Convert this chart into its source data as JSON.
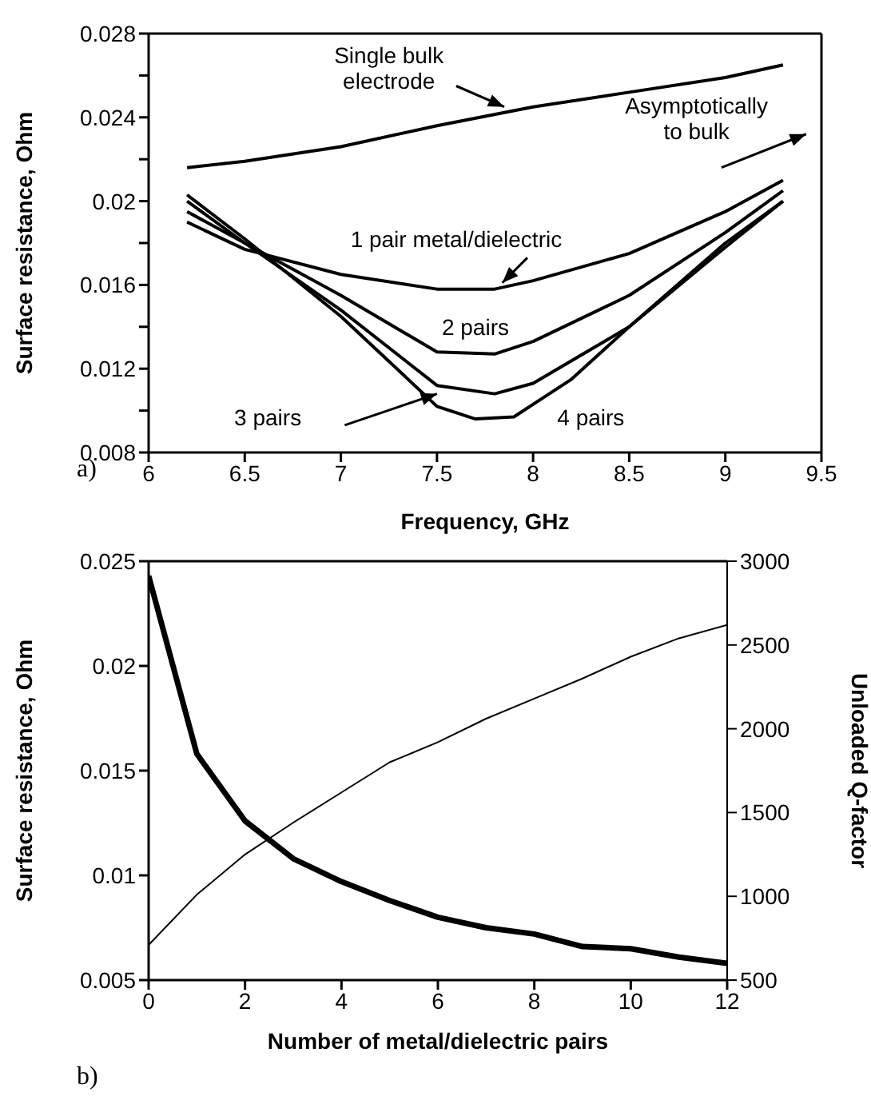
{
  "chart_data": [
    {
      "type": "line",
      "xlabel": "Frequency, GHz",
      "ylabel": "Surface resistance, Ohm",
      "xlim": [
        6,
        9.5
      ],
      "xticks": [
        6,
        6.5,
        7,
        7.5,
        8,
        8.5,
        9,
        9.5
      ],
      "ylim": [
        0.008,
        0.028
      ],
      "yticks": [
        0.008,
        {
          "value": 0.01,
          "label": null
        },
        0.012,
        {
          "value": 0.014,
          "label": null
        },
        0.016,
        {
          "value": 0.018,
          "label": null
        },
        0.02,
        {
          "value": 0.022,
          "label": null
        },
        0.024,
        {
          "value": 0.026,
          "label": null
        },
        0.028
      ],
      "marker": "none",
      "annotations": [
        "Asymptotically to bulk",
        "a)"
      ],
      "series": [
        {
          "name": "Single bulk electrode",
          "color": "#000000",
          "x": [
            6.2,
            6.5,
            7,
            7.5,
            8,
            8.5,
            9,
            9.3
          ],
          "values": [
            0.0216,
            0.0219,
            0.0226,
            0.0236,
            0.0245,
            0.0252,
            0.0259,
            0.0265
          ]
        },
        {
          "name": "1 pair metal/dielectric",
          "color": "#000000",
          "x": [
            6.2,
            6.5,
            7,
            7.5,
            7.8,
            8,
            8.5,
            9,
            9.3
          ],
          "values": [
            0.019,
            0.0177,
            0.0165,
            0.0158,
            0.0158,
            0.0162,
            0.0175,
            0.0195,
            0.021
          ]
        },
        {
          "name": "2 pairs",
          "color": "#000000",
          "x": [
            6.2,
            6.5,
            7,
            7.5,
            7.8,
            8,
            8.5,
            9,
            9.3
          ],
          "values": [
            0.0195,
            0.018,
            0.0155,
            0.0128,
            0.0127,
            0.0133,
            0.0155,
            0.0185,
            0.0205
          ]
        },
        {
          "name": "3 pairs",
          "color": "#000000",
          "x": [
            6.2,
            6.5,
            7,
            7.5,
            7.8,
            8,
            8.5,
            9,
            9.3
          ],
          "values": [
            0.02,
            0.018,
            0.0148,
            0.0112,
            0.0108,
            0.0113,
            0.014,
            0.018,
            0.02
          ]
        },
        {
          "name": "4 pairs",
          "color": "#000000",
          "x": [
            6.2,
            6.5,
            7,
            7.5,
            7.7,
            7.9,
            8.2,
            8.5,
            9,
            9.3
          ],
          "values": [
            0.0203,
            0.0182,
            0.0145,
            0.0102,
            0.0096,
            0.0097,
            0.0115,
            0.014,
            0.0178,
            0.02
          ]
        }
      ]
    },
    {
      "type": "line",
      "xlabel": "Number of metal/dielectric pairs",
      "ylabel": "Surface resistance, Ohm",
      "y2label": "Unloaded Q-factor",
      "xlim": [
        0,
        12
      ],
      "xticks": [
        0,
        2,
        4,
        6,
        8,
        10,
        12
      ],
      "ylim": [
        0.005,
        0.025
      ],
      "yticks": [
        0.005,
        0.01,
        0.015,
        0.02,
        0.025
      ],
      "y2lim": [
        500,
        3000
      ],
      "y2ticks": [
        500,
        1000,
        1500,
        2000,
        2500,
        3000
      ],
      "marker": "none",
      "annotations": [
        "b)"
      ],
      "series": [
        {
          "color": "#000000",
          "x": [
            0,
            1,
            2,
            3,
            4,
            5,
            6,
            7,
            8,
            9,
            10,
            11,
            12
          ],
          "values": [
            0.0243,
            0.0158,
            0.0126,
            0.0108,
            0.0097,
            0.0088,
            0.008,
            0.0075,
            0.0072,
            0.0066,
            0.0065,
            0.0061,
            0.0058
          ]
        },
        {
          "color": "#000000",
          "axis": "y2",
          "x": [
            0,
            1,
            2,
            3,
            4,
            5,
            6,
            7,
            8,
            9,
            10,
            11,
            12
          ],
          "values": [
            710,
            1010,
            1250,
            1440,
            1620,
            1800,
            1920,
            2060,
            2180,
            2300,
            2430,
            2540,
            2620
          ]
        }
      ]
    }
  ]
}
